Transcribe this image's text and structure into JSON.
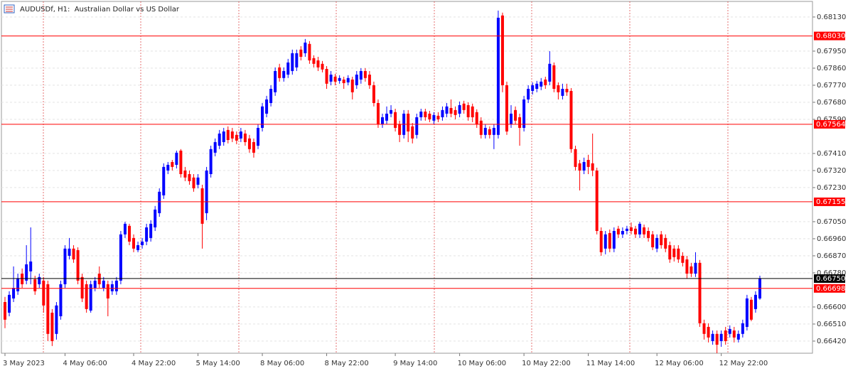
{
  "chart_data": {
    "type": "candlestick",
    "title": "AUDUSDf, H1:  Australian Dollar vs US Dollar",
    "open": [
      0.66626,
      0.6657,
      0.66645,
      0.66683,
      0.66776,
      0.66739,
      0.66788,
      0.66746,
      0.6672,
      0.66739,
      0.6672,
      0.6657,
      0.66458,
      0.66551,
      0.6672,
      0.6687,
      0.66908,
      0.669,
      0.66758,
      0.6672,
      0.66581,
      0.66701,
      0.66776,
      0.66701,
      0.6672,
      0.66683,
      0.66683,
      0.66739,
      0.66983,
      0.67028,
      0.66964,
      0.669,
      0.66926,
      0.66945,
      0.66964,
      0.6702,
      0.67095,
      0.67189,
      0.6732,
      0.67365,
      0.6735,
      0.67425,
      0.6732,
      0.67301,
      0.67283,
      0.67245,
      0.67226,
      0.67095,
      0.67301,
      0.67414,
      0.67451,
      0.6747,
      0.67534,
      0.67526,
      0.67508,
      0.67489,
      0.67515,
      0.67489,
      0.6747,
      0.67451,
      0.67545,
      0.6762,
      0.67676,
      0.67733,
      0.67864,
      0.67808,
      0.67826,
      0.67845,
      0.67864,
      0.67958,
      0.67939,
      0.67988,
      0.67913,
      0.67901,
      0.67883,
      0.67856,
      0.67789,
      0.67815,
      0.67793,
      0.678,
      0.67785,
      0.678,
      0.6777,
      0.678,
      0.67845,
      0.67826,
      0.6777,
      0.67676,
      0.67564,
      0.67583,
      0.6762,
      0.67628,
      0.67564,
      0.67508,
      0.6762,
      0.67553,
      0.67508,
      0.67601,
      0.67631,
      0.6762,
      0.67583,
      0.67609,
      0.67601,
      0.6762,
      0.6765,
      0.67639,
      0.6762,
      0.67673,
      0.67665,
      0.67658,
      0.67628,
      0.67583,
      0.67508,
      0.67538,
      0.67508,
      0.67508,
      0.68138,
      0.6777,
      0.67564,
      0.67639,
      0.67601,
      0.67545,
      0.67695,
      0.6774,
      0.67751,
      0.67763,
      0.678,
      0.67789,
      0.67875,
      0.6777,
      0.67714,
      0.67751,
      0.6774,
      0.67433,
      0.67358,
      0.6732,
      0.67376,
      0.67358,
      0.6732,
      0.67001,
      0.66908,
      0.6699,
      0.66908,
      0.67013,
      0.66983,
      0.67001,
      0.6702,
      0.67013,
      0.66983,
      0.6702,
      0.67001,
      0.66983,
      0.66908,
      0.66983,
      0.66964,
      0.66926,
      0.66908,
      0.66908,
      0.6687,
      0.66851,
      0.66814,
      0.66776,
      0.66833,
      0.66514,
      0.66495,
      0.6642,
      0.66458,
      0.6642,
      0.66476,
      0.66458,
      0.66476,
      0.66428,
      0.66458,
      0.66495,
      0.66638,
      0.66589,
      0.66645
    ],
    "high": [
      0.66653,
      0.66683,
      0.66814,
      0.66776,
      0.66803,
      0.66926,
      0.6702,
      0.66765,
      0.66776,
      0.66758,
      0.66739,
      0.66589,
      0.66626,
      0.66739,
      0.66926,
      0.66964,
      0.66926,
      0.66915,
      0.66776,
      0.66739,
      0.66739,
      0.66758,
      0.66814,
      0.66758,
      0.66739,
      0.66739,
      0.66758,
      0.67001,
      0.6705,
      0.67039,
      0.66983,
      0.66945,
      0.66964,
      0.67039,
      0.67058,
      0.67133,
      0.67226,
      0.67358,
      0.67365,
      0.67376,
      0.67425,
      0.67433,
      0.67339,
      0.6732,
      0.67301,
      0.67301,
      0.67245,
      0.67339,
      0.67451,
      0.67489,
      0.67534,
      0.67545,
      0.67553,
      0.67545,
      0.67526,
      0.67545,
      0.67534,
      0.67508,
      0.67489,
      0.67564,
      0.67676,
      0.67714,
      0.6777,
      0.67864,
      0.67883,
      0.67864,
      0.67909,
      0.67958,
      0.67958,
      0.67976,
      0.68014,
      0.68003,
      0.67928,
      0.6792,
      0.67898,
      0.67871,
      0.67845,
      0.6783,
      0.67823,
      0.67815,
      0.67823,
      0.67815,
      0.67845,
      0.6786,
      0.6786,
      0.67845,
      0.67789,
      0.67695,
      0.6762,
      0.67658,
      0.67665,
      0.67646,
      0.67583,
      0.67639,
      0.67639,
      0.67571,
      0.6762,
      0.67646,
      0.67646,
      0.67635,
      0.67628,
      0.67628,
      0.67658,
      0.67676,
      0.67695,
      0.67658,
      0.67684,
      0.67688,
      0.6768,
      0.67673,
      0.67643,
      0.67601,
      0.67564,
      0.67553,
      0.67564,
      0.68164,
      0.68153,
      0.67789,
      0.67665,
      0.67658,
      0.6762,
      0.67714,
      0.6777,
      0.67785,
      0.67793,
      0.67808,
      0.67815,
      0.6795,
      0.6789,
      0.67785,
      0.67778,
      0.67778,
      0.67755,
      0.67451,
      0.67376,
      0.67388,
      0.67403,
      0.67515,
      0.67335,
      0.6702,
      0.67001,
      0.67009,
      0.6702,
      0.67028,
      0.6702,
      0.67028,
      0.67046,
      0.67028,
      0.6705,
      0.67035,
      0.6702,
      0.67001,
      0.66983,
      0.67001,
      0.66983,
      0.66945,
      0.66926,
      0.66926,
      0.66889,
      0.6687,
      0.66833,
      0.66889,
      0.66848,
      0.66533,
      0.66514,
      0.66476,
      0.66476,
      0.66476,
      0.66495,
      0.66503,
      0.66495,
      0.66476,
      0.66533,
      0.66664,
      0.66653,
      0.66683,
      0.66765
    ],
    "low": [
      0.66488,
      0.66551,
      0.66626,
      0.66664,
      0.66701,
      0.6672,
      0.6672,
      0.66664,
      0.66701,
      0.6657,
      0.6642,
      0.66394,
      0.66428,
      0.66533,
      0.66701,
      0.66851,
      0.66833,
      0.6672,
      0.66626,
      0.6657,
      0.6657,
      0.66683,
      0.66701,
      0.66683,
      0.66551,
      0.66664,
      0.66664,
      0.6672,
      0.66964,
      0.66926,
      0.66889,
      0.66889,
      0.66908,
      0.66926,
      0.66945,
      0.67001,
      0.67076,
      0.6717,
      0.67301,
      0.6732,
      0.67331,
      0.67283,
      0.67264,
      0.67245,
      0.67208,
      0.67226,
      0.66908,
      0.67058,
      0.67283,
      0.67395,
      0.67433,
      0.67451,
      0.67463,
      0.6747,
      0.67459,
      0.6747,
      0.67451,
      0.67414,
      0.67388,
      0.67433,
      0.67526,
      0.67601,
      0.67658,
      0.67714,
      0.67789,
      0.67789,
      0.67808,
      0.67826,
      0.67845,
      0.67901,
      0.6792,
      0.67883,
      0.67864,
      0.67845,
      0.67838,
      0.67751,
      0.6777,
      0.6777,
      0.67778,
      0.67751,
      0.6777,
      0.67695,
      0.67751,
      0.67778,
      0.67789,
      0.67751,
      0.67658,
      0.67545,
      0.67545,
      0.67564,
      0.67601,
      0.67526,
      0.6747,
      0.67489,
      0.6747,
      0.67463,
      0.67489,
      0.67583,
      0.67583,
      0.67575,
      0.67564,
      0.67575,
      0.67583,
      0.67601,
      0.67601,
      0.6759,
      0.67601,
      0.6762,
      0.67583,
      0.67575,
      0.67545,
      0.67489,
      0.67489,
      0.67489,
      0.67433,
      0.67489,
      0.67733,
      0.67508,
      0.67545,
      0.67564,
      0.67451,
      0.67526,
      0.67676,
      0.67721,
      0.67733,
      0.67744,
      0.67751,
      0.6777,
      0.67733,
      0.67695,
      0.67695,
      0.67714,
      0.67414,
      0.6732,
      0.67215,
      0.67301,
      0.67301,
      0.6729,
      0.66983,
      0.6687,
      0.66878,
      0.66889,
      0.66889,
      0.66964,
      0.66964,
      0.66983,
      0.66983,
      0.66964,
      0.66964,
      0.66964,
      0.66945,
      0.669,
      0.66889,
      0.66908,
      0.66889,
      0.66833,
      0.6684,
      0.66833,
      0.66814,
      0.6675,
      0.66758,
      0.66758,
      0.66495,
      0.66428,
      0.66413,
      0.66401,
      0.66356,
      0.6639,
      0.66401,
      0.66439,
      0.66413,
      0.66413,
      0.66439,
      0.66476,
      0.66525,
      0.6657,
      0.66638
    ],
    "close": [
      0.66533,
      0.66664,
      0.66701,
      0.6675,
      0.6672,
      0.66825,
      0.6684,
      0.66683,
      0.66758,
      0.66608,
      0.66458,
      0.6642,
      0.66608,
      0.6672,
      0.66908,
      0.66908,
      0.66851,
      0.66739,
      0.66645,
      0.66589,
      0.6672,
      0.66739,
      0.6672,
      0.66739,
      0.66645,
      0.6672,
      0.66739,
      0.66983,
      0.67039,
      0.66945,
      0.66908,
      0.66926,
      0.66945,
      0.6702,
      0.67039,
      0.67114,
      0.67208,
      0.67339,
      0.6735,
      0.67339,
      0.67414,
      0.67301,
      0.67283,
      0.67264,
      0.67226,
      0.67283,
      0.67039,
      0.6732,
      0.67433,
      0.6747,
      0.67515,
      0.67526,
      0.67481,
      0.67489,
      0.67478,
      0.67526,
      0.6747,
      0.67433,
      0.67414,
      0.67545,
      0.67658,
      0.67695,
      0.67751,
      0.67845,
      0.67808,
      0.67845,
      0.6789,
      0.67939,
      0.67939,
      0.6792,
      0.67995,
      0.67901,
      0.67883,
      0.67864,
      0.67853,
      0.67778,
      0.67826,
      0.67789,
      0.67808,
      0.67781,
      0.67808,
      0.67733,
      0.67826,
      0.67845,
      0.67808,
      0.6777,
      0.67676,
      0.67564,
      0.67601,
      0.6762,
      0.67639,
      0.67545,
      0.67508,
      0.6762,
      0.67526,
      0.67489,
      0.67601,
      0.67631,
      0.67601,
      0.6759,
      0.67613,
      0.6759,
      0.67639,
      0.67658,
      0.6762,
      0.67613,
      0.67665,
      0.67639,
      0.67601,
      0.67601,
      0.67564,
      0.67508,
      0.67545,
      0.67508,
      0.67545,
      0.68126,
      0.6777,
      0.67526,
      0.6762,
      0.67583,
      0.67545,
      0.67695,
      0.67751,
      0.6777,
      0.67778,
      0.67789,
      0.6777,
      0.67883,
      0.67751,
      0.67733,
      0.67751,
      0.67733,
      0.67433,
      0.67339,
      0.6732,
      0.67365,
      0.67339,
      0.6732,
      0.67001,
      0.66889,
      0.66983,
      0.66908,
      0.67001,
      0.66983,
      0.67001,
      0.67013,
      0.67001,
      0.66983,
      0.67039,
      0.66983,
      0.66964,
      0.66915,
      0.66964,
      0.66926,
      0.66908,
      0.66851,
      0.66863,
      0.66851,
      0.66833,
      0.66776,
      0.66776,
      0.66833,
      0.66514,
      0.66458,
      0.66439,
      0.66458,
      0.66401,
      0.66458,
      0.6642,
      0.66484,
      0.66439,
      0.66458,
      0.66514,
      0.66645,
      0.66533,
      0.66664,
      0.6675
    ],
    "up_color": "#0000ff",
    "down_color": "#ff0000",
    "ylim": [
      0.66356,
      0.68201
    ],
    "yticks": [
      {
        "value": 0.6813,
        "label": "0.68130"
      },
      {
        "value": 0.6795,
        "label": "0.67950"
      },
      {
        "value": 0.6786,
        "label": "0.67860"
      },
      {
        "value": 0.6777,
        "label": "0.67770"
      },
      {
        "value": 0.6768,
        "label": "0.67680"
      },
      {
        "value": 0.6759,
        "label": "0.67590"
      },
      {
        "value": 0.6741,
        "label": "0.67410"
      },
      {
        "value": 0.6732,
        "label": "0.67320"
      },
      {
        "value": 0.6723,
        "label": "0.67230"
      },
      {
        "value": 0.6705,
        "label": "0.67050"
      },
      {
        "value": 0.6696,
        "label": "0.66960"
      },
      {
        "value": 0.6687,
        "label": "0.66870"
      },
      {
        "value": 0.6678,
        "label": "0.66780"
      },
      {
        "value": 0.666,
        "label": "0.66600"
      },
      {
        "value": 0.6651,
        "label": "0.66510"
      },
      {
        "value": 0.6642,
        "label": "0.66420"
      }
    ],
    "xticks": [
      {
        "value": 0,
        "label": "3 May 2023"
      },
      {
        "value": 14,
        "label": "4 May 06:00"
      },
      {
        "value": 30,
        "label": "4 May 22:00"
      },
      {
        "value": 45,
        "label": "5 May 14:00"
      },
      {
        "value": 60,
        "label": "8 May 06:00"
      },
      {
        "value": 75,
        "label": "8 May 22:00"
      },
      {
        "value": 91,
        "label": "9 May 14:00"
      },
      {
        "value": 106,
        "label": "10 May 06:00"
      },
      {
        "value": 121,
        "label": "10 May 22:00"
      },
      {
        "value": 136,
        "label": "11 May 14:00"
      },
      {
        "value": 152,
        "label": "12 May 06:00"
      },
      {
        "value": 167,
        "label": "12 May 22:00"
      }
    ],
    "levels": [
      {
        "value": 0.6803,
        "label": "0.68030",
        "color": "#ff0000"
      },
      {
        "value": 0.67564,
        "label": "0.67564",
        "color": "#ff0000"
      },
      {
        "value": 0.67155,
        "label": "0.67155",
        "color": "#ff0000"
      },
      {
        "value": 0.66698,
        "label": "0.66698",
        "color": "#ff0000"
      }
    ],
    "price_line": {
      "value": 0.6675,
      "label": "0.66750",
      "color": "#000000"
    },
    "grid": true
  }
}
